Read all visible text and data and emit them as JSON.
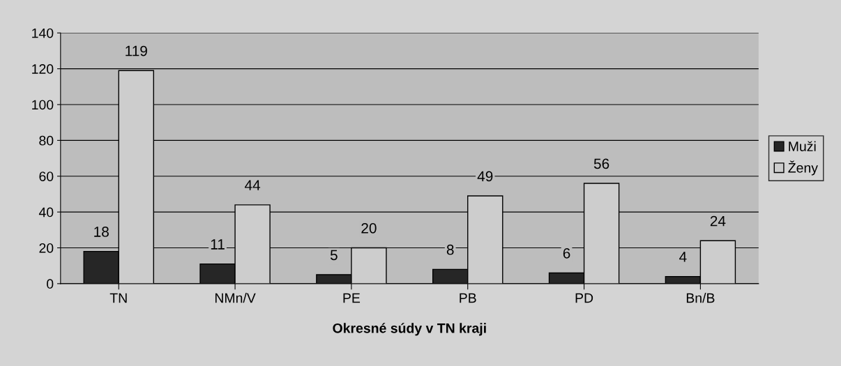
{
  "chart_data": {
    "type": "bar",
    "xlabel": "Okresné súdy v TN kraji",
    "categories": [
      "TN",
      "NMn/V",
      "PE",
      "PB",
      "PD",
      "Bn/B"
    ],
    "series": [
      {
        "name": "Muži",
        "color": "#262626",
        "values": [
          18,
          11,
          5,
          8,
          6,
          4
        ]
      },
      {
        "name": "Ženy",
        "color": "#cdcdcd",
        "values": [
          119,
          44,
          20,
          49,
          56,
          24
        ]
      }
    ],
    "ylim": [
      0,
      140
    ],
    "yticks": [
      0,
      20,
      40,
      60,
      80,
      100,
      120,
      140
    ],
    "grid": "y",
    "legend": "right",
    "data_labels": true
  }
}
